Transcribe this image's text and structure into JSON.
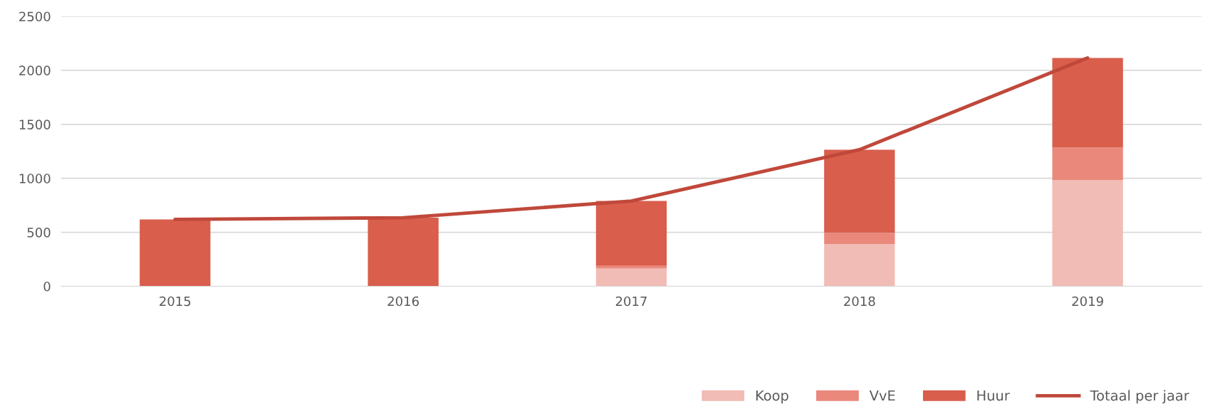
{
  "chart_data": {
    "type": "bar",
    "stacked": true,
    "categories": [
      "2015",
      "2016",
      "2017",
      "2018",
      "2019"
    ],
    "series": [
      {
        "name": "Koop",
        "color": "#f1bcb5",
        "values": [
          0,
          0,
          165,
          390,
          985
        ]
      },
      {
        "name": "VvE",
        "color": "#ea887c",
        "values": [
          0,
          0,
          25,
          105,
          300
        ]
      },
      {
        "name": "Huur",
        "color": "#d95e4c",
        "values": [
          620,
          635,
          600,
          770,
          830
        ]
      },
      {
        "name": "Totaal per jaar",
        "type": "line",
        "color": "#c0483b",
        "values": [
          620,
          635,
          790,
          1265,
          2115
        ]
      }
    ],
    "ylim": [
      0,
      2500
    ],
    "yticks": [
      0,
      500,
      1000,
      1500,
      2000,
      2500
    ],
    "grid": "y",
    "legend": "bottom right",
    "marker": "none",
    "line_style": "solid"
  }
}
